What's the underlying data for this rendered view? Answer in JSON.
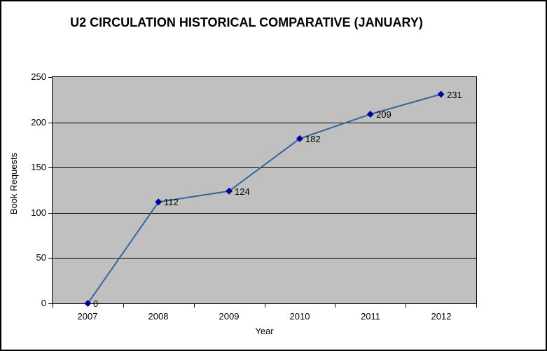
{
  "chart": {
    "title": "U2 CIRCULATION HISTORICAL COMPARATIVE (JANUARY)",
    "xlabel": "Year",
    "ylabel": "Book Requests"
  },
  "chart_data": {
    "type": "line",
    "title": "U2 CIRCULATION HISTORICAL COMPARATIVE (JANUARY)",
    "xlabel": "Year",
    "ylabel": "Book Requests",
    "categories": [
      "2007",
      "2008",
      "2009",
      "2010",
      "2011",
      "2012"
    ],
    "series": [
      {
        "name": "Book Requests",
        "values": [
          0,
          112,
          124,
          182,
          209,
          231
        ]
      }
    ],
    "data_labels": [
      "0",
      "112",
      "124",
      "182",
      "209",
      "231"
    ],
    "ylim": [
      0,
      250
    ],
    "yticks": [
      0,
      50,
      100,
      150,
      200,
      250
    ],
    "grid": true,
    "legend": "none",
    "marker": "diamond",
    "colors": {
      "canvas_bg": "#FFFFFF",
      "canvas_border": "#000000",
      "plot_bg": "#C0C0C0",
      "gridline": "#000000",
      "axis": "#000000",
      "line": "#336699",
      "marker": "#000099",
      "text": "#000000"
    }
  }
}
